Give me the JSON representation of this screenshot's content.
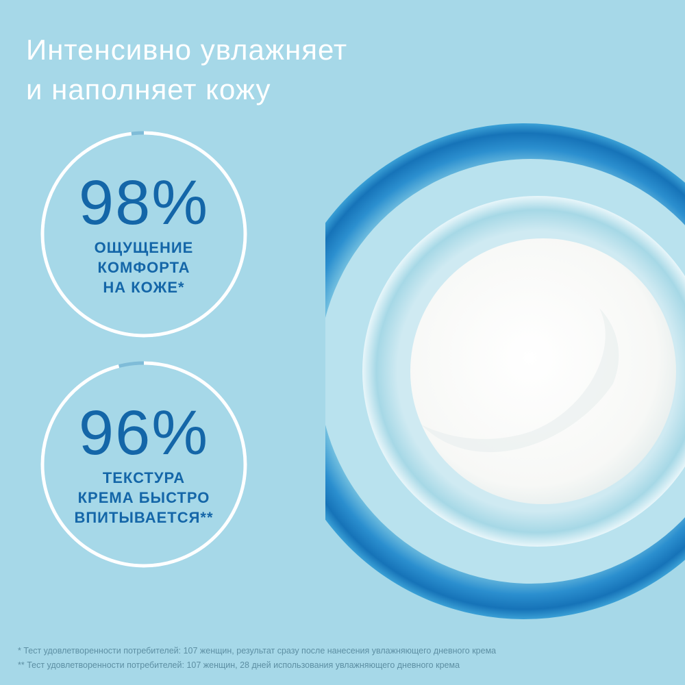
{
  "headline": {
    "line1": "Интенсивно увлажняет",
    "line2": "и наполняет кожу"
  },
  "stats": [
    {
      "value_label": "98%",
      "value": 98,
      "lines": [
        "ОЩУЩЕНИЕ",
        "КОМФОРТА",
        "НА КОЖЕ*"
      ]
    },
    {
      "value_label": "96%",
      "value": 96,
      "lines": [
        "ТЕКСТУРА",
        "КРЕМА БЫСТРО",
        "ВПИТЫВАЕТСЯ**"
      ]
    }
  ],
  "footnotes": [
    "* Тест удовлетворенности потребителей: 107 женщин, результат сразу после нанесения увлажняющего дневного крема",
    "** Тест удовлетворенности потребителей: 107 женщин, 28 дней использования увлажняющего дневного крема"
  ],
  "colors": {
    "background": "#a6d8e8",
    "accent": "#1466a8",
    "ring": "#ffffff",
    "ring_remainder": "#7fbcd8"
  }
}
